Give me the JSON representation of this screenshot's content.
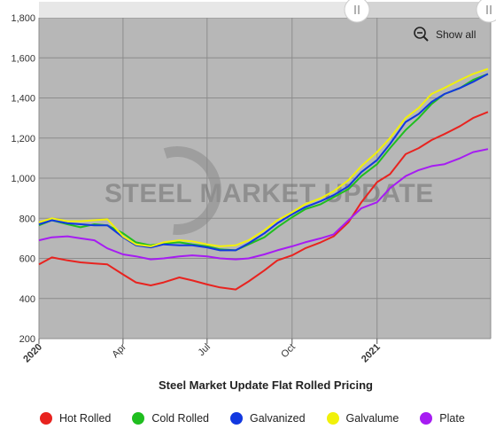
{
  "chart_data": {
    "type": "line",
    "title": "Steel Market Update Flat Rolled Pricing",
    "watermark": "STEEL MARKET UPDATE",
    "show_all_label": "Show all",
    "ylim": [
      200,
      1800
    ],
    "yticks": [
      "200",
      "400",
      "600",
      "800",
      "1,000",
      "1,200",
      "1,400",
      "1,600",
      "1,800"
    ],
    "ytick_values": [
      200,
      400,
      600,
      800,
      1000,
      1200,
      1400,
      1600,
      1800
    ],
    "xticks": [
      {
        "label": "2020",
        "x": "2020-01-01",
        "bold": true
      },
      {
        "label": "Apr",
        "x": "2020-04-01",
        "bold": false
      },
      {
        "label": "Jul",
        "x": "2020-07-01",
        "bold": false
      },
      {
        "label": "Oct",
        "x": "2020-10-01",
        "bold": false
      },
      {
        "label": "2021",
        "x": "2021-01-01",
        "bold": true
      }
    ],
    "xlim": [
      "2020-01-01",
      "2021-05-04"
    ],
    "dates": [
      "2020-01-01",
      "2020-01-15",
      "2020-02-01",
      "2020-02-15",
      "2020-03-01",
      "2020-03-15",
      "2020-04-01",
      "2020-04-15",
      "2020-05-01",
      "2020-05-15",
      "2020-06-01",
      "2020-06-15",
      "2020-07-01",
      "2020-07-15",
      "2020-08-01",
      "2020-08-15",
      "2020-09-01",
      "2020-09-15",
      "2020-10-01",
      "2020-10-15",
      "2020-11-01",
      "2020-11-15",
      "2020-12-01",
      "2020-12-15",
      "2021-01-01",
      "2021-01-15",
      "2021-02-01",
      "2021-02-15",
      "2021-03-01",
      "2021-03-15",
      "2021-04-01",
      "2021-04-15",
      "2021-05-01"
    ],
    "plot_background": "#b7b7b7",
    "series": [
      {
        "name": "Hot Rolled",
        "color": "#e8231f",
        "values": [
          570,
          605,
          590,
          580,
          575,
          570,
          520,
          480,
          465,
          480,
          505,
          490,
          470,
          455,
          445,
          485,
          540,
          590,
          615,
          650,
          680,
          710,
          780,
          880,
          980,
          1020,
          1120,
          1150,
          1190,
          1220,
          1260,
          1300,
          1330
        ]
      },
      {
        "name": "Cold Rolled",
        "color": "#1fbe1f",
        "values": [
          765,
          790,
          770,
          755,
          770,
          765,
          725,
          680,
          665,
          675,
          680,
          670,
          660,
          645,
          640,
          670,
          705,
          755,
          805,
          845,
          870,
          905,
          945,
          1010,
          1070,
          1150,
          1240,
          1300,
          1370,
          1420,
          1450,
          1490,
          1520
        ]
      },
      {
        "name": "Galvanized",
        "color": "#1238e0",
        "values": [
          770,
          790,
          775,
          770,
          765,
          765,
          705,
          665,
          655,
          670,
          665,
          665,
          655,
          640,
          640,
          675,
          725,
          775,
          820,
          855,
          885,
          915,
          960,
          1030,
          1090,
          1170,
          1280,
          1320,
          1380,
          1420,
          1450,
          1480,
          1520
        ]
      },
      {
        "name": "Galvalume",
        "color": "#f1f10a",
        "values": [
          780,
          800,
          785,
          785,
          790,
          795,
          710,
          670,
          660,
          680,
          690,
          685,
          670,
          660,
          665,
          690,
          740,
          790,
          830,
          870,
          900,
          935,
          990,
          1060,
          1130,
          1200,
          1300,
          1350,
          1420,
          1450,
          1490,
          1520,
          1545
        ]
      },
      {
        "name": "Plate",
        "color": "#a61cf2",
        "values": [
          690,
          705,
          710,
          700,
          690,
          650,
          620,
          610,
          595,
          600,
          610,
          615,
          610,
          600,
          595,
          600,
          620,
          640,
          660,
          680,
          700,
          720,
          790,
          850,
          880,
          950,
          1010,
          1040,
          1060,
          1070,
          1100,
          1130,
          1145
        ]
      }
    ],
    "legend": [
      "Hot Rolled",
      "Cold Rolled",
      "Galvanized",
      "Galvalume",
      "Plate"
    ]
  }
}
